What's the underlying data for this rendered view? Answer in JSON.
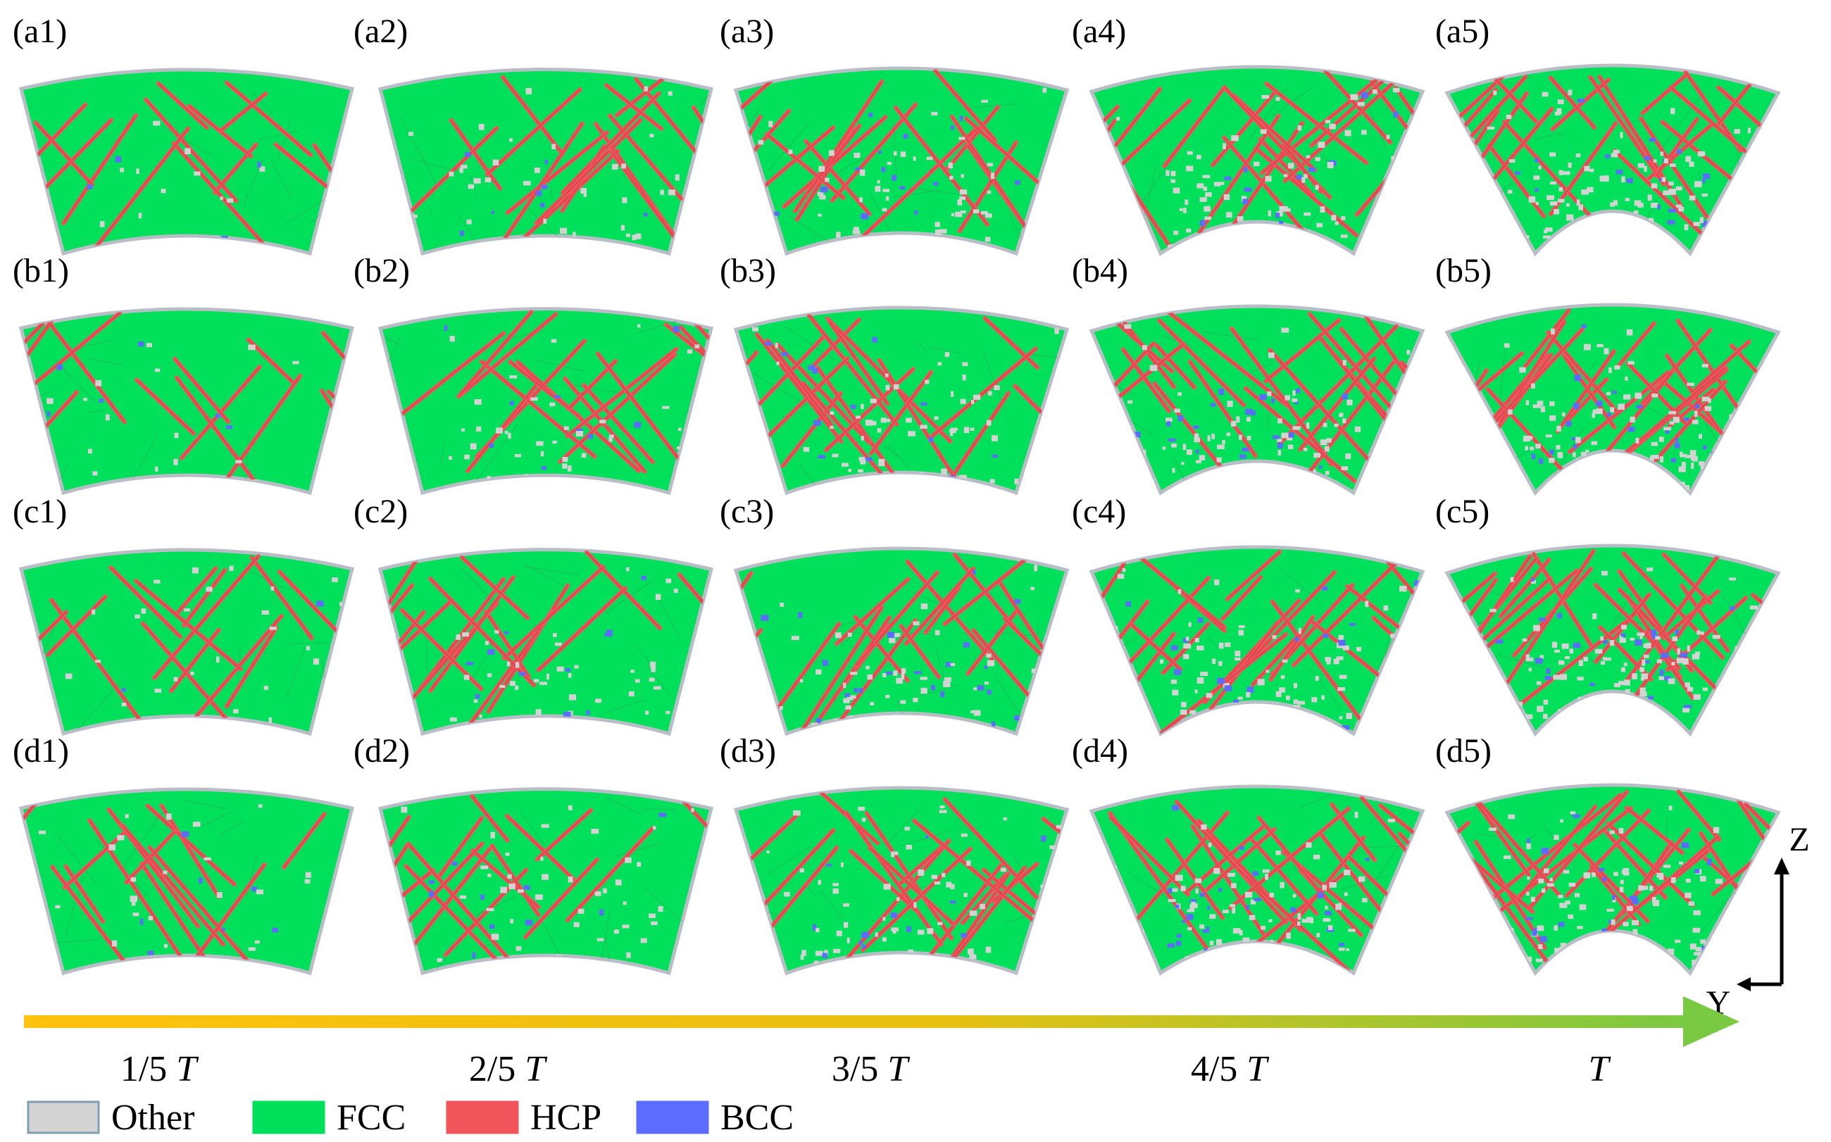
{
  "panels": {
    "row_prefixes": [
      "a",
      "b",
      "c",
      "d"
    ],
    "column_suffixes": [
      "1",
      "2",
      "3",
      "4",
      "5"
    ],
    "labels": [
      [
        "(a1)",
        "(a2)",
        "(a3)",
        "(a4)",
        "(a5)"
      ],
      [
        "(b1)",
        "(b2)",
        "(b3)",
        "(b4)",
        "(b5)"
      ],
      [
        "(c1)",
        "(c2)",
        "(c3)",
        "(c4)",
        "(c5)"
      ],
      [
        "(d1)",
        "(d2)",
        "(d3)",
        "(d4)",
        "(d5)"
      ]
    ]
  },
  "time_axis": {
    "steps": [
      {
        "fraction": "1/5 ",
        "symbol": "T"
      },
      {
        "fraction": "2/5 ",
        "symbol": "T"
      },
      {
        "fraction": "3/5 ",
        "symbol": "T"
      },
      {
        "fraction": "4/5 ",
        "symbol": "T"
      },
      {
        "fraction": "",
        "symbol": "T"
      }
    ],
    "arrow_colors": {
      "start": "#ffc20e",
      "end": "#7ac943"
    }
  },
  "axes": {
    "vertical": "Z",
    "horizontal": "Y"
  },
  "legend": [
    {
      "label": "Other",
      "color": "#d3d3d3",
      "border": "#7f9fb0"
    },
    {
      "label": "FCC",
      "color": "#00e05a",
      "border": "#00e05a"
    },
    {
      "label": "HCP",
      "color": "#f2545b",
      "border": "#f2545b"
    },
    {
      "label": "BCC",
      "color": "#5c6cff",
      "border": "#5c6cff"
    }
  ],
  "structure_colors": {
    "fcc": "#00e05a",
    "hcp": "#f2545b",
    "bcc": "#5c6cff",
    "other": "#d3d3d3",
    "outline": "#b9bec6"
  }
}
